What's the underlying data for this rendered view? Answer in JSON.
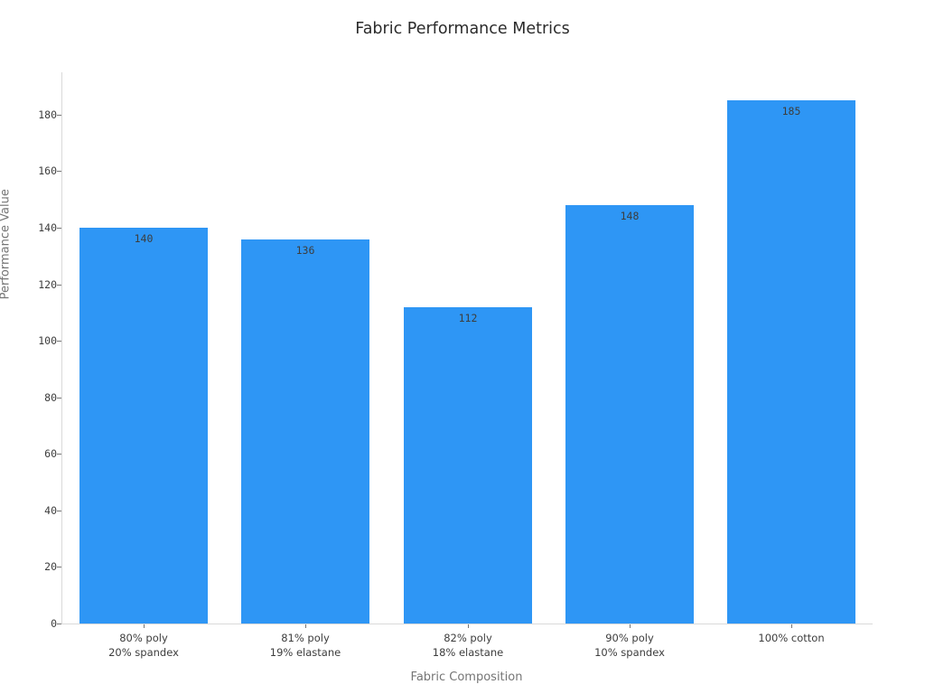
{
  "chart_data": {
    "type": "bar",
    "title": "Fabric Performance Metrics",
    "xlabel": "Fabric Composition",
    "ylabel": "Performance Value",
    "categories": [
      "80% poly\n20% spandex",
      "81% poly\n19% elastane",
      "82% poly\n18% elastane",
      "90% poly\n10% spandex",
      "100% cotton"
    ],
    "values": [
      140,
      136,
      112,
      148,
      185
    ],
    "value_labels": [
      "140",
      "136",
      "112",
      "148",
      "185"
    ],
    "yticks": [
      0,
      20,
      40,
      60,
      80,
      100,
      120,
      140,
      160,
      180
    ],
    "ylim": [
      0,
      195
    ],
    "grid": false,
    "legend": "none",
    "colors": {
      "bar": "#2E96F5",
      "value_label": "#3d3d3d",
      "tick_label": "#3d3d3d",
      "axis_title": "#757575",
      "title": "#2b2b2b",
      "spine": "#d9d9d9",
      "background": "#ffffff"
    }
  }
}
